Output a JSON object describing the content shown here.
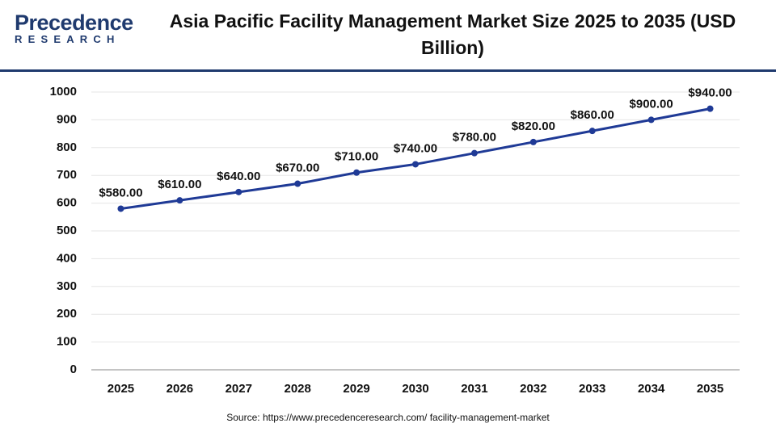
{
  "logo": {
    "name": "Precedence",
    "sub": "RESEARCH"
  },
  "chart_data": {
    "type": "line",
    "title": "Asia Pacific Facility Management Market Size 2025 to 2035 (USD Billion)",
    "categories": [
      "2025",
      "2026",
      "2027",
      "2028",
      "2029",
      "2030",
      "2031",
      "2032",
      "2033",
      "2034",
      "2035"
    ],
    "series": [
      {
        "name": "Market Size",
        "color": "#1f3a96",
        "values": [
          580,
          610,
          640,
          670,
          710,
          740,
          780,
          820,
          860,
          900,
          940
        ],
        "value_labels": [
          "$580.00",
          "$610.00",
          "$640.00",
          "$670.00",
          "$710.00",
          "$740.00",
          "$780.00",
          "$820.00",
          "$860.00",
          "$900.00",
          "$940.00"
        ]
      }
    ],
    "ylim": [
      0,
      1000
    ],
    "yticks": [
      0,
      100,
      200,
      300,
      400,
      500,
      600,
      700,
      800,
      900,
      1000
    ],
    "grid": true,
    "source": "Source: https://www.precedenceresearch.com/ facility-management-market"
  }
}
